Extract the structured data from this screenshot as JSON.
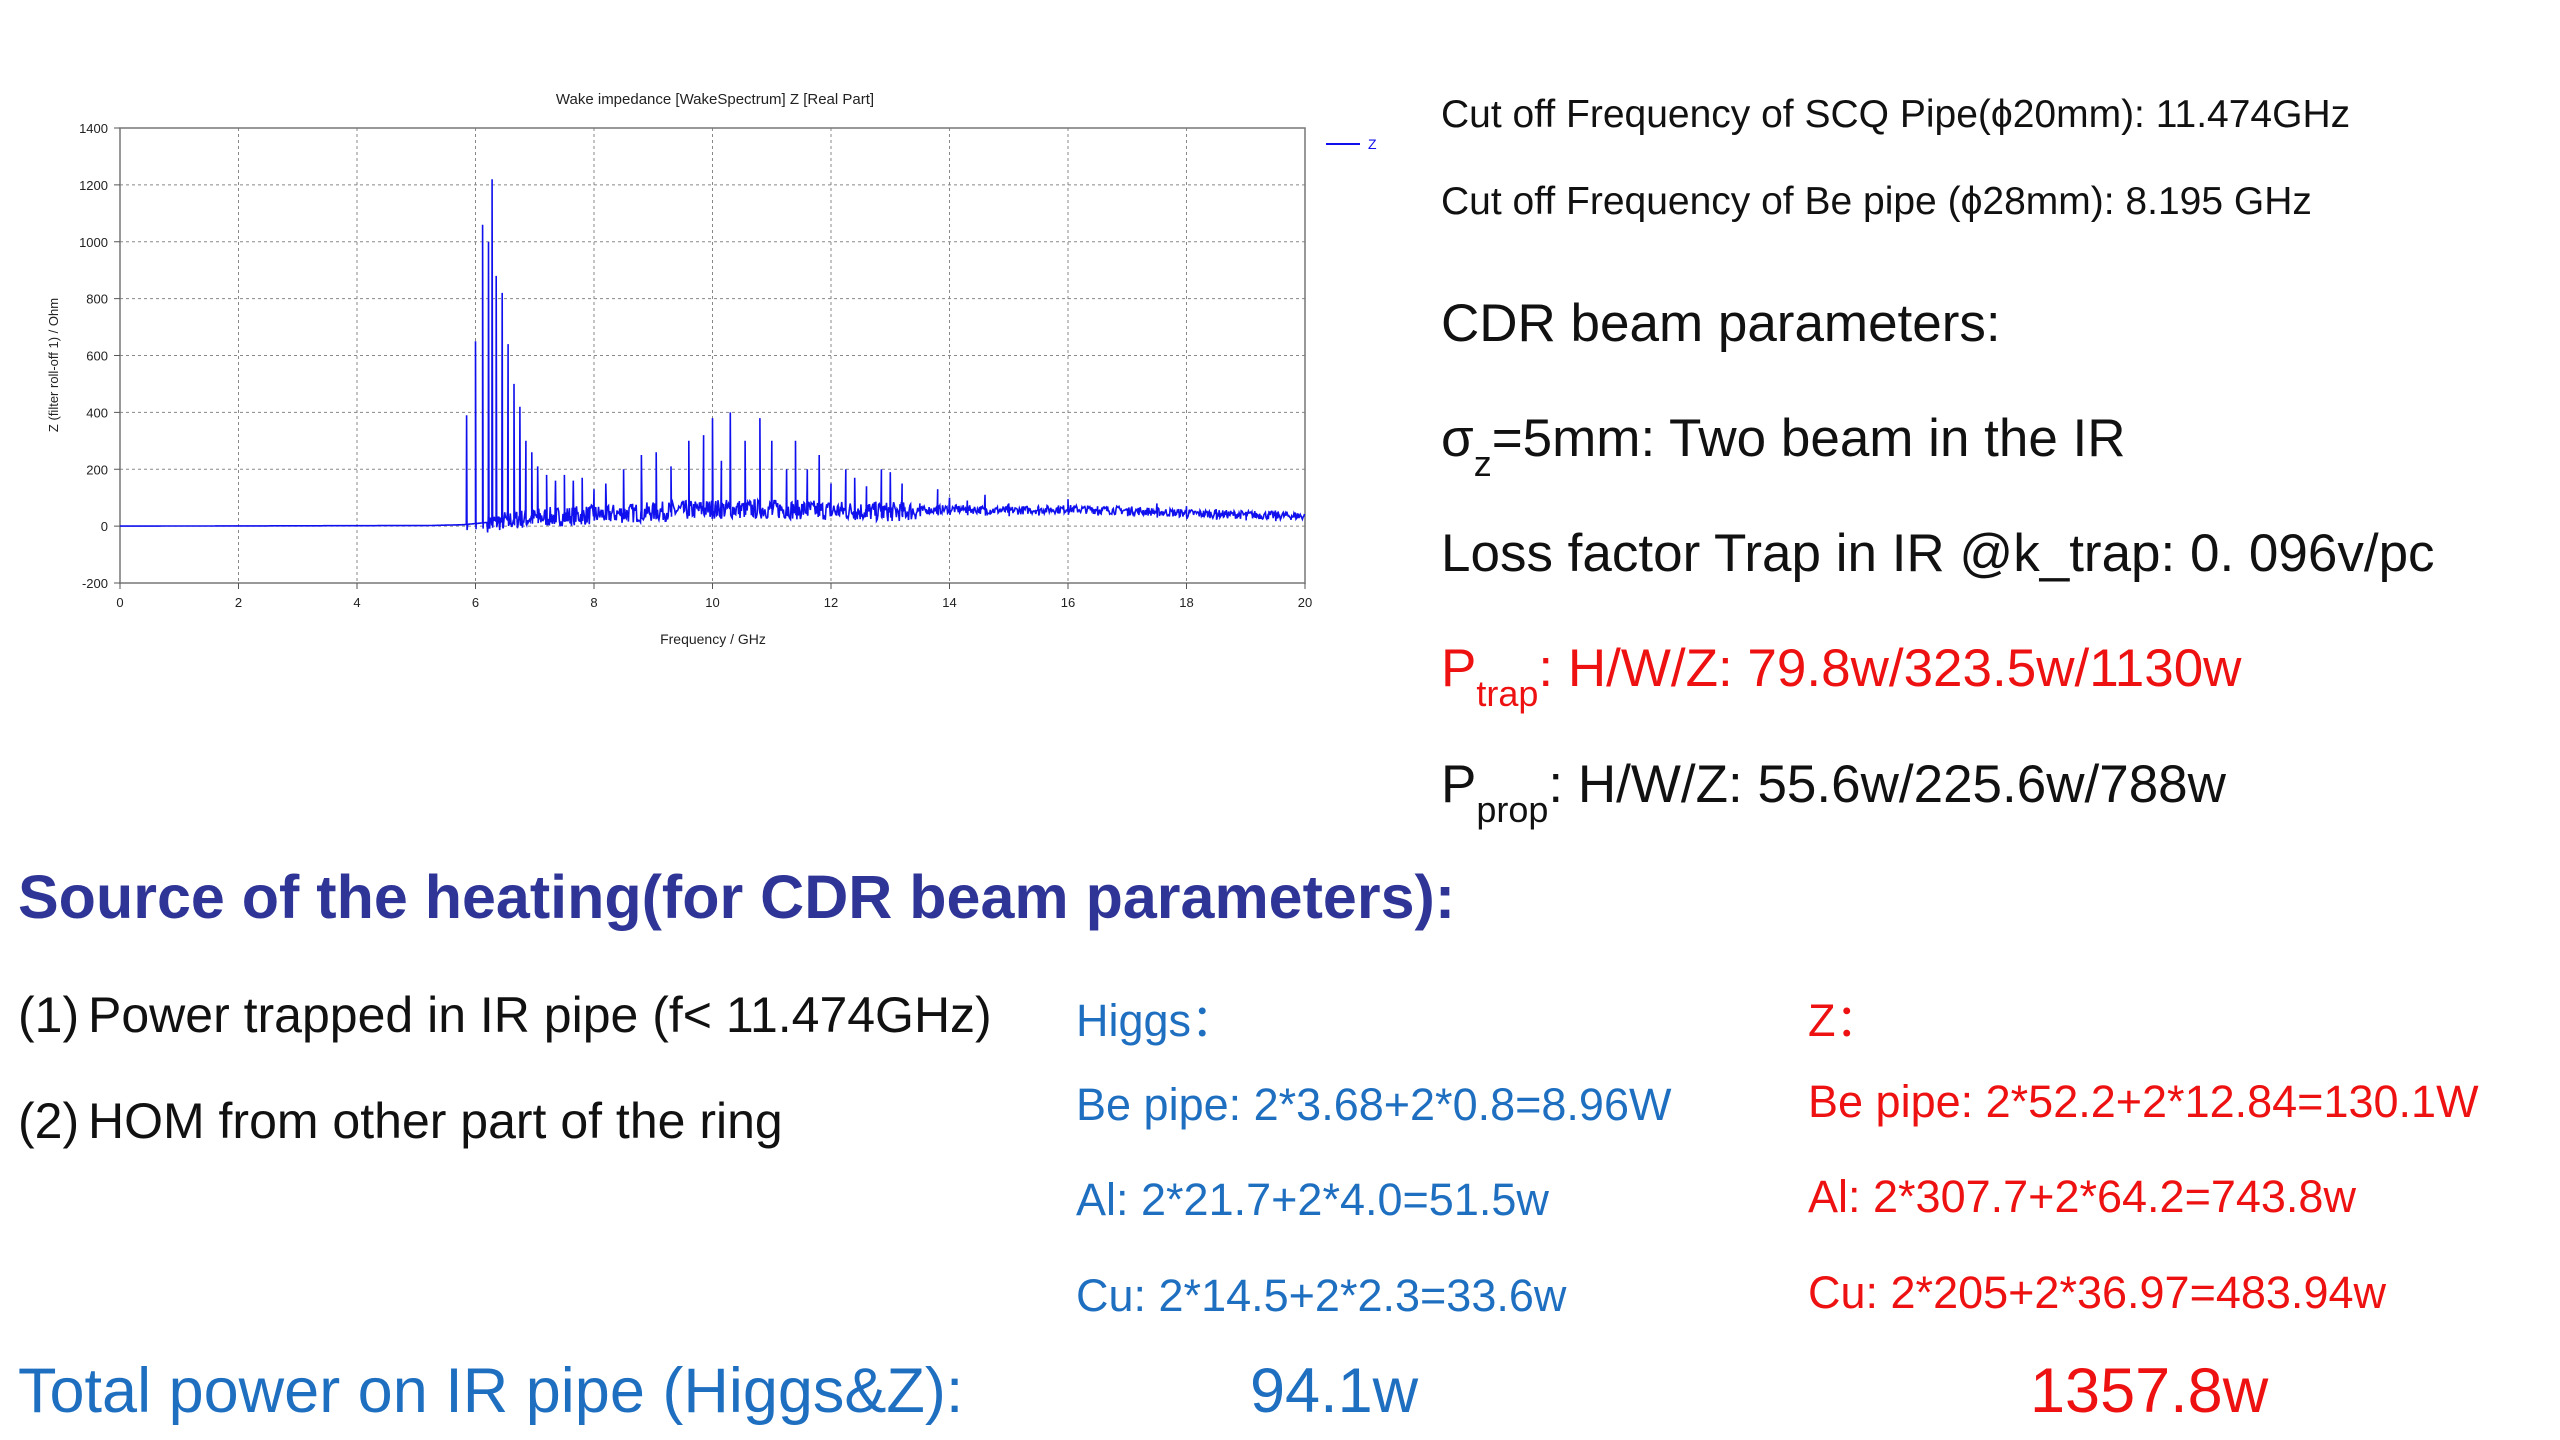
{
  "chart_data": {
    "type": "line",
    "title": "Wake impedance [WakeSpectrum] Z [Real Part]",
    "xlabel": "Frequency / GHz",
    "ylabel": "Z (filter roll-off 1) / Ohm",
    "xlim": [
      0,
      20
    ],
    "ylim": [
      -200,
      1400
    ],
    "xticks": [
      0,
      2,
      4,
      6,
      8,
      10,
      12,
      14,
      16,
      18,
      20
    ],
    "yticks": [
      -200,
      0,
      200,
      400,
      600,
      800,
      1000,
      1200,
      1400
    ],
    "grid": true,
    "legend": {
      "position": "top-right",
      "entries": [
        "Z"
      ]
    },
    "series": [
      {
        "name": "Z",
        "color": "#1010ee",
        "baseline": [
          [
            0,
            0
          ],
          [
            5.2,
            2
          ],
          [
            5.8,
            5
          ],
          [
            6.3,
            15
          ],
          [
            7.0,
            30
          ],
          [
            8.0,
            40
          ],
          [
            9.0,
            50
          ],
          [
            10.0,
            60
          ],
          [
            11.0,
            60
          ],
          [
            12.0,
            55
          ],
          [
            13.0,
            50
          ],
          [
            14.0,
            60
          ],
          [
            15.0,
            55
          ],
          [
            16.0,
            60
          ],
          [
            17.0,
            55
          ],
          [
            18.0,
            45
          ],
          [
            19.0,
            40
          ],
          [
            20.0,
            35
          ]
        ],
        "peaks": [
          [
            5.85,
            390
          ],
          [
            6.0,
            650
          ],
          [
            6.12,
            1060
          ],
          [
            6.22,
            1000
          ],
          [
            6.28,
            1220
          ],
          [
            6.35,
            880
          ],
          [
            6.45,
            820
          ],
          [
            6.55,
            640
          ],
          [
            6.65,
            500
          ],
          [
            6.75,
            420
          ],
          [
            6.85,
            300
          ],
          [
            6.95,
            260
          ],
          [
            7.05,
            210
          ],
          [
            7.2,
            180
          ],
          [
            7.35,
            160
          ],
          [
            7.5,
            180
          ],
          [
            7.65,
            160
          ],
          [
            7.8,
            170
          ],
          [
            8.0,
            130
          ],
          [
            8.2,
            150
          ],
          [
            8.5,
            200
          ],
          [
            8.8,
            250
          ],
          [
            9.05,
            260
          ],
          [
            9.3,
            210
          ],
          [
            9.6,
            300
          ],
          [
            9.85,
            320
          ],
          [
            10.0,
            380
          ],
          [
            10.15,
            230
          ],
          [
            10.3,
            400
          ],
          [
            10.55,
            300
          ],
          [
            10.8,
            380
          ],
          [
            11.0,
            300
          ],
          [
            11.25,
            200
          ],
          [
            11.4,
            300
          ],
          [
            11.6,
            200
          ],
          [
            11.8,
            250
          ],
          [
            12.0,
            150
          ],
          [
            12.25,
            200
          ],
          [
            12.4,
            170
          ],
          [
            12.6,
            140
          ],
          [
            12.85,
            200
          ],
          [
            13.0,
            190
          ],
          [
            13.2,
            150
          ],
          [
            13.5,
            80
          ],
          [
            13.8,
            130
          ],
          [
            14.0,
            100
          ],
          [
            14.3,
            90
          ],
          [
            14.6,
            110
          ],
          [
            15.0,
            80
          ],
          [
            15.5,
            70
          ],
          [
            16.0,
            95
          ],
          [
            16.5,
            70
          ],
          [
            17.0,
            60
          ],
          [
            17.5,
            80
          ],
          [
            18.0,
            70
          ],
          [
            18.5,
            60
          ],
          [
            19.0,
            50
          ],
          [
            19.5,
            55
          ]
        ]
      }
    ]
  },
  "params": {
    "cutoff_scq": "Cut off Frequency of SCQ Pipe(ϕ20mm): 11.474GHz",
    "cutoff_be": "Cut off Frequency of Be pipe  (ϕ28mm):  8.195 GHz",
    "cdr_title": "CDR beam parameters:",
    "sigma_symbol": "σ",
    "sigma_sub": "z",
    "sigma_rest": "=5mm: Two beam in the IR",
    "loss_factor": "Loss factor Trap in IR @k_trap: 0. 096v/pc",
    "ptrap_p": "P",
    "ptrap_sub": "trap",
    "ptrap_rest": ": H/W/Z: 79.8w/323.5w/1130w",
    "pprop_p": "P",
    "pprop_sub": "prop",
    "pprop_rest": ": H/W/Z: 55.6w/225.6w/788w"
  },
  "heading": "Source of the heating(for CDR beam parameters):",
  "sources": [
    {
      "num": "(1)",
      "text": "Power trapped in IR pipe (f< 11.474GHz)"
    },
    {
      "num": "(2)",
      "text": "HOM from other part of the ring"
    }
  ],
  "higgs": {
    "label": "Higgs：",
    "be": "Be pipe: 2*3.68+2*0.8=8.96W",
    "al": "Al: 2*21.7+2*4.0=51.5w",
    "cu": "Cu: 2*14.5+2*2.3=33.6w"
  },
  "z": {
    "label": "Z：",
    "be": "Be pipe: 2*52.2+2*12.84=130.1W",
    "al": "Al: 2*307.7+2*64.2=743.8w",
    "cu": "Cu: 2*205+2*36.97=483.94w"
  },
  "totals": {
    "label": "Total power on IR pipe (Higgs&Z):",
    "higgs": "94.1w",
    "z": "1357.8w"
  },
  "colors": {
    "heading": "#2f3597",
    "blue_text": "#1f6fc1",
    "red_text": "#ee1111",
    "series": "#1010ee"
  }
}
